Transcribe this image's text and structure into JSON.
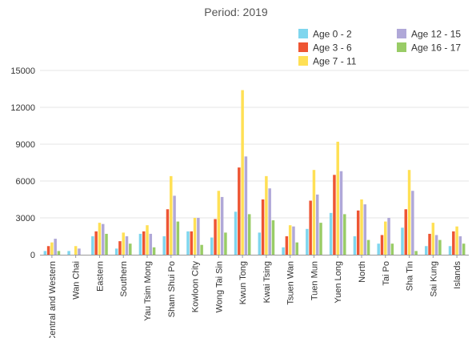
{
  "chart_data": {
    "type": "bar",
    "title": "Period: 2019",
    "xlabel": "",
    "ylabel": "",
    "ylim": [
      0,
      15000
    ],
    "yticks": [
      "0",
      "3000",
      "6000",
      "9000",
      "12000",
      "15000"
    ],
    "categories": [
      "Central and Western",
      "Wan Chai",
      "Eastern",
      "Southern",
      "Yau Tsim Mong",
      "Sham Shui Po",
      "Kowloon City",
      "Wong Tai Sin",
      "Kwun Tong",
      "Kwai Tsing",
      "Tsuen Wan",
      "Tuen Mun",
      "Yuen Long",
      "North",
      "Tai Po",
      "Sha Tin",
      "Sai Kung",
      "Islands"
    ],
    "series": [
      {
        "name": "Age 0 - 2",
        "color": "#7fd6ee",
        "values": [
          300,
          300,
          1500,
          500,
          1700,
          1500,
          1900,
          1400,
          3500,
          1800,
          600,
          2100,
          3400,
          1500,
          900,
          2200,
          700,
          700
        ]
      },
      {
        "name": "Age 3 - 6",
        "color": "#ee5533",
        "values": [
          700,
          0,
          1900,
          1100,
          1900,
          3700,
          1900,
          2900,
          7100,
          4500,
          1500,
          4400,
          6500,
          3600,
          1600,
          3700,
          1700,
          1900
        ]
      },
      {
        "name": "Age 7 - 11",
        "color": "#ffe055",
        "values": [
          1000,
          700,
          2600,
          1800,
          2400,
          6400,
          3000,
          5200,
          13400,
          6400,
          2400,
          6900,
          9200,
          4500,
          2700,
          6900,
          2600,
          2300
        ]
      },
      {
        "name": "Age 12 - 15",
        "color": "#b0a8d8",
        "values": [
          1300,
          500,
          2500,
          1500,
          1700,
          4800,
          3000,
          4700,
          8000,
          5400,
          2300,
          4900,
          6800,
          4100,
          3000,
          5200,
          1600,
          1500
        ]
      },
      {
        "name": "Age 16 - 17",
        "color": "#99cc66",
        "values": [
          300,
          0,
          1700,
          900,
          600,
          2700,
          800,
          1800,
          3300,
          2800,
          1000,
          2600,
          3300,
          1200,
          900,
          300,
          1200,
          900
        ]
      }
    ],
    "legend_position": "top-right",
    "grid": true
  }
}
